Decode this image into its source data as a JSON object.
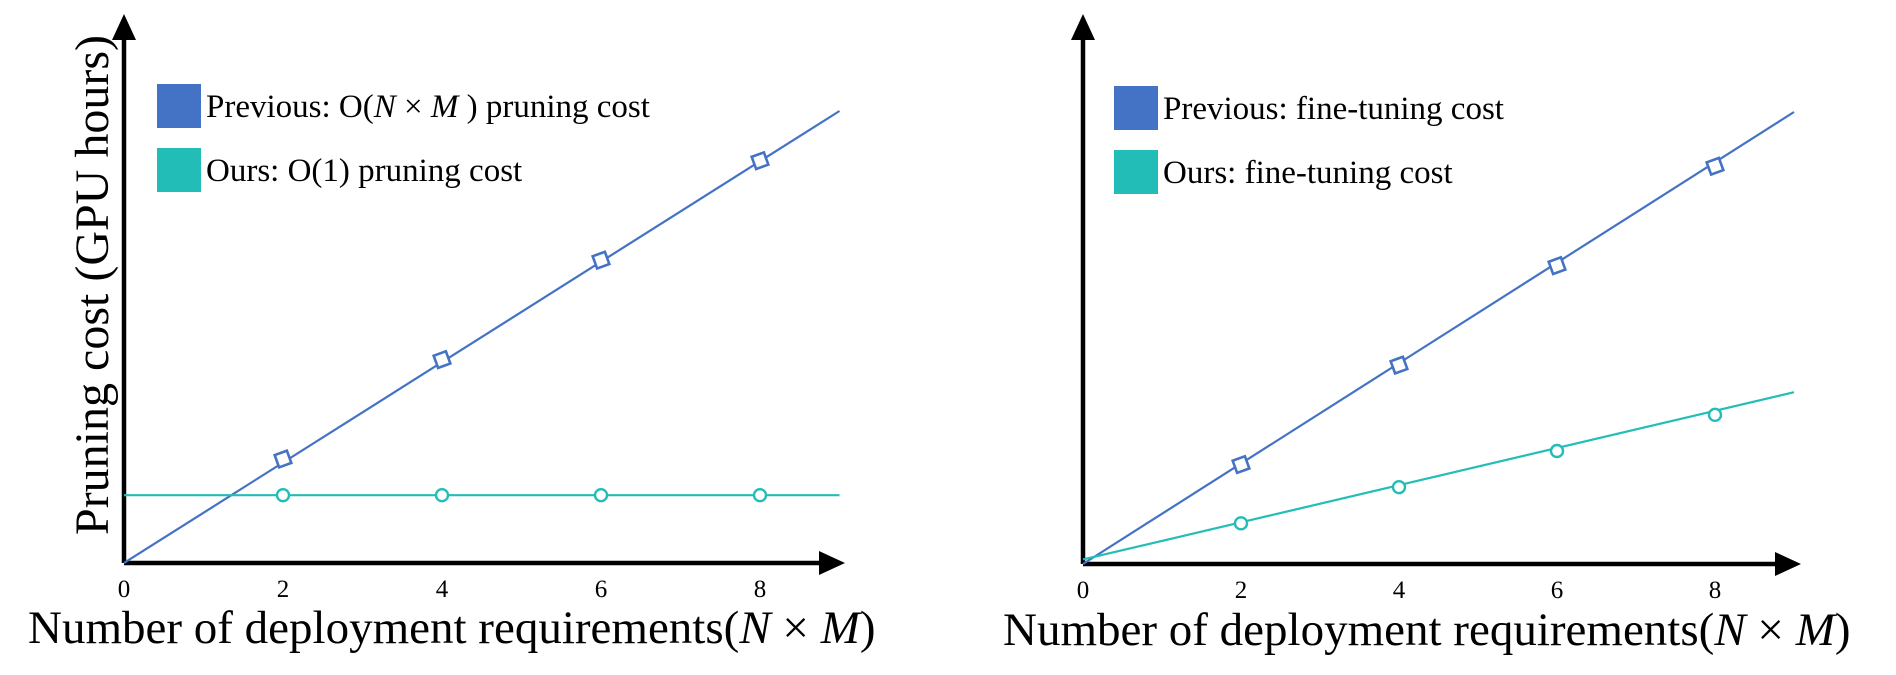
{
  "chart_data": [
    {
      "type": "line",
      "ylabel": "Pruning cost (GPU hours)",
      "xlabel_text": "Number of deployment requirements(",
      "xlabel_var1": "N",
      "xlabel_op": " × ",
      "xlabel_var2": "M",
      "xlabel_close": ")",
      "xlim": [
        0,
        9
      ],
      "ylim": [
        0,
        10
      ],
      "x_ticks": [
        0,
        2,
        4,
        6,
        8
      ],
      "grid": false,
      "legend_position": "top-left",
      "series": [
        {
          "name": "Previous: O(N × M ) pruning cost",
          "legend_pre": "Previous: O(",
          "legend_it1": "N",
          "legend_op": " × ",
          "legend_it2": "M",
          "legend_post": " ) pruning cost",
          "color": "#4472C4",
          "marker": "diamond",
          "line_x": [
            0,
            9
          ],
          "line_y": [
            0,
            10.0
          ],
          "points_x": [
            2,
            4,
            6,
            8
          ],
          "points_y": [
            2.3,
            4.5,
            6.7,
            8.9
          ]
        },
        {
          "name": "Ours: O(1) pruning cost",
          "legend_pre": "Ours: O(1) pruning cost",
          "color": "#23BDB8",
          "marker": "circle",
          "line_x": [
            0,
            9
          ],
          "line_y": [
            1.5,
            1.5
          ],
          "points_x": [
            2,
            4,
            6,
            8
          ],
          "points_y": [
            1.5,
            1.5,
            1.5,
            1.5
          ]
        }
      ]
    },
    {
      "type": "line",
      "ylabel": "",
      "xlabel_text": "Number of deployment requirements(",
      "xlabel_var1": "N",
      "xlabel_op": " × ",
      "xlabel_var2": "M",
      "xlabel_close": ")",
      "xlim": [
        0,
        9
      ],
      "ylim": [
        0,
        10
      ],
      "x_ticks": [
        0,
        2,
        4,
        6,
        8
      ],
      "grid": false,
      "legend_position": "top-left",
      "series": [
        {
          "name": "Previous: fine-tuning cost",
          "legend_pre": "Previous: fine-tuning cost",
          "color": "#4472C4",
          "marker": "diamond",
          "line_x": [
            0,
            9
          ],
          "line_y": [
            0,
            10.0
          ],
          "points_x": [
            2,
            4,
            6,
            8
          ],
          "points_y": [
            2.2,
            4.4,
            6.6,
            8.8
          ]
        },
        {
          "name": "Ours: fine-tuning cost",
          "legend_pre": "Ours: fine-tuning cost",
          "color": "#23BDB8",
          "marker": "circle",
          "line_x": [
            0,
            9
          ],
          "line_y": [
            0.1,
            3.8
          ],
          "points_x": [
            2,
            4,
            6,
            8
          ],
          "points_y": [
            0.9,
            1.7,
            2.5,
            3.3
          ]
        }
      ]
    }
  ]
}
